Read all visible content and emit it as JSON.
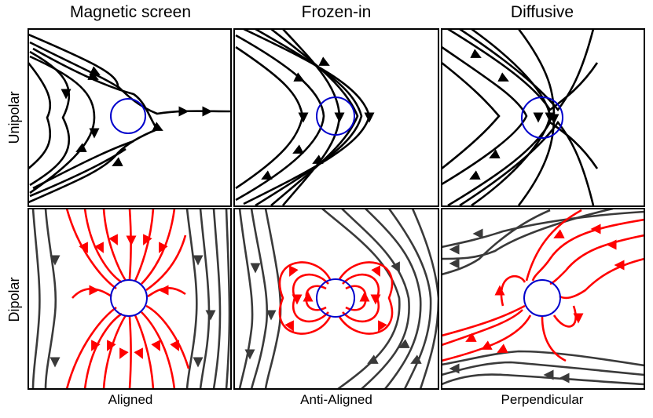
{
  "columns": [
    "Magnetic screen",
    "Frozen-in",
    "Diffusive"
  ],
  "rows": [
    "Unipolar",
    "Dipolar"
  ],
  "bottom_labels": [
    "Aligned",
    "Anti-Aligned",
    "Perpendicular"
  ],
  "colors": {
    "field_line": "#000000",
    "dipole_field_line": "#ff0000",
    "outer_field_line": "#3a3a3a",
    "obstacle_outline": "#0000cc",
    "panel_border": "#000000"
  },
  "icons": [
    "arrowhead-icon"
  ]
}
